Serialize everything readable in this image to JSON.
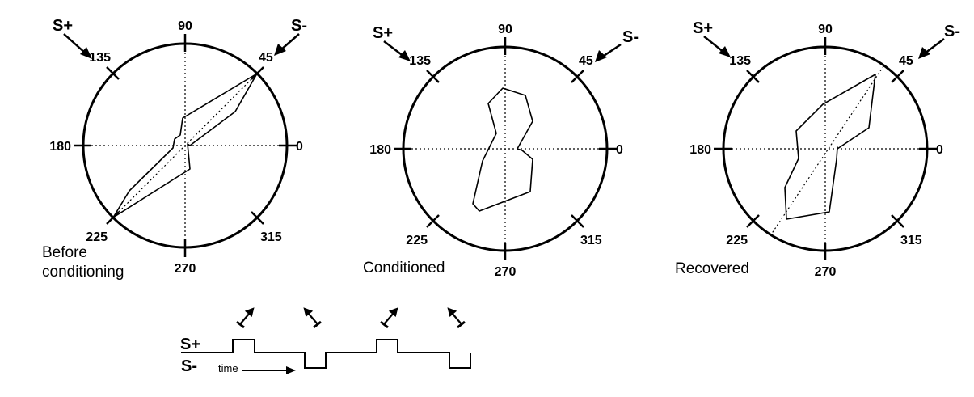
{
  "polar_plots": [
    {
      "caption_lines": [
        "Before",
        "conditioning"
      ],
      "s_plus": "S+",
      "s_minus": "S-",
      "angle_labels": [
        "0",
        "45",
        "90",
        "135",
        "180",
        "225",
        "270",
        "315"
      ],
      "show_reference_diagonal": true,
      "tuning_profile": [
        [
          0.05,
          0
        ],
        [
          0.57,
          30
        ],
        [
          1.0,
          45
        ],
        [
          0.39,
          80
        ],
        [
          0.05,
          110
        ],
        [
          0.11,
          160
        ],
        [
          0.1,
          200
        ],
        [
          0.69,
          215
        ],
        [
          1.0,
          225
        ],
        [
          0.44,
          260
        ],
        [
          0.02,
          310
        ]
      ]
    },
    {
      "caption_lines": [
        "Conditioned"
      ],
      "s_plus": "S+",
      "s_minus": "S-",
      "angle_labels": [
        "0",
        "45",
        "90",
        "135",
        "180",
        "225",
        "270",
        "315"
      ],
      "show_reference_diagonal": false,
      "tuning_profile": [
        [
          0.1,
          0
        ],
        [
          0.31,
          30
        ],
        [
          0.56,
          70
        ],
        [
          0.62,
          95
        ],
        [
          0.51,
          115
        ],
        [
          0.22,
          165
        ],
        [
          0.42,
          205
        ],
        [
          0.75,
          215
        ],
        [
          0.67,
          245
        ],
        [
          0.55,
          280
        ],
        [
          0.43,
          315
        ],
        [
          0.2,
          350
        ]
      ]
    },
    {
      "caption_lines": [
        "Recovered"
      ],
      "s_plus": "S+",
      "s_minus": "S-",
      "angle_labels": [
        "0",
        "45",
        "90",
        "135",
        "180",
        "225",
        "270",
        "315"
      ],
      "show_reference_diagonal": true,
      "tuning_profile": [
        [
          0.12,
          0
        ],
        [
          0.6,
          20
        ],
        [
          0.92,
          45
        ],
        [
          0.47,
          100
        ],
        [
          0.34,
          155
        ],
        [
          0.28,
          200
        ],
        [
          0.6,
          225
        ],
        [
          0.7,
          235
        ],
        [
          0.55,
          265
        ],
        [
          0.12,
          300
        ],
        [
          0.12,
          340
        ]
      ]
    }
  ],
  "timing_diagram": {
    "s_plus_label": "S+",
    "s_minus_label": "S-",
    "time_label": "time",
    "pulse_sequence": [
      "S+",
      "S-",
      "S+",
      "S-"
    ]
  }
}
